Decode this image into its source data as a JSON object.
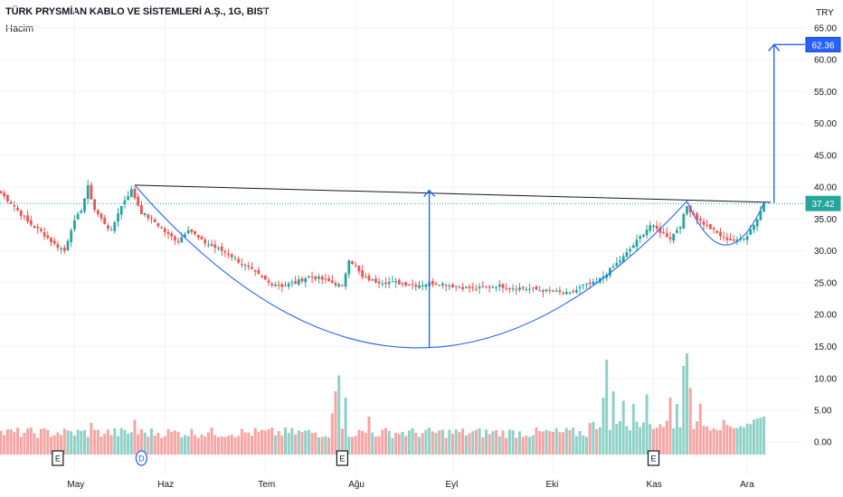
{
  "header": {
    "title": "TÜRK PRYSMİAN KABLO VE SİSTEMLERİ A.Ş., 1G, BIST",
    "volume_label": "Hacim",
    "currency": "TRY"
  },
  "colors": {
    "up": "#26a69a",
    "down": "#ef5350",
    "vol_up": "#8fd1c7",
    "vol_down": "#f5a5a4",
    "pattern": "#2962ff",
    "resistance": "#131722",
    "price_line": "#26a69a"
  },
  "chart_data": {
    "type": "candlestick",
    "symbol": "TÜRK PRYSMİAN KABLO VE SİSTEMLERİ A.Ş.",
    "interval": "1G",
    "exchange": "BIST",
    "currency": "TRY",
    "price_axis": {
      "ticks": [
        "65.00",
        "60.00",
        "55.00",
        "50.00",
        "45.00",
        "40.00",
        "35.00",
        "30.00",
        "25.00",
        "20.00",
        "15.00",
        "10.00",
        "5.00",
        "0.00"
      ]
    },
    "time_axis": {
      "labels": [
        "May",
        "Haz",
        "Tem",
        "Ağu",
        "Eyl",
        "Eki",
        "Kas",
        "Ara"
      ]
    },
    "last_price": {
      "value": 37.42,
      "label": "37.42"
    },
    "target_price": {
      "value": 62.36,
      "label": "62.36"
    },
    "price_keypoints": [
      {
        "i": 0,
        "p": 39.0
      },
      {
        "i": 4,
        "p": 37.0
      },
      {
        "i": 8,
        "p": 34.5
      },
      {
        "i": 12,
        "p": 33.0
      },
      {
        "i": 16,
        "p": 31.0
      },
      {
        "i": 19,
        "p": 30.0
      },
      {
        "i": 21,
        "p": 33.5
      },
      {
        "i": 24,
        "p": 36.5
      },
      {
        "i": 26,
        "p": 40.0
      },
      {
        "i": 28,
        "p": 36.5
      },
      {
        "i": 30,
        "p": 35.0
      },
      {
        "i": 33,
        "p": 33.0
      },
      {
        "i": 35,
        "p": 36.0
      },
      {
        "i": 37,
        "p": 38.0
      },
      {
        "i": 39,
        "p": 39.5
      },
      {
        "i": 42,
        "p": 36.0
      },
      {
        "i": 46,
        "p": 34.5
      },
      {
        "i": 50,
        "p": 32.5
      },
      {
        "i": 53,
        "p": 31.5
      },
      {
        "i": 56,
        "p": 33.5
      },
      {
        "i": 60,
        "p": 31.5
      },
      {
        "i": 64,
        "p": 30.5
      },
      {
        "i": 68,
        "p": 29.5
      },
      {
        "i": 72,
        "p": 28.0
      },
      {
        "i": 76,
        "p": 26.5
      },
      {
        "i": 80,
        "p": 25.0
      },
      {
        "i": 84,
        "p": 24.5
      },
      {
        "i": 88,
        "p": 25.0
      },
      {
        "i": 92,
        "p": 26.0
      },
      {
        "i": 96,
        "p": 25.5
      },
      {
        "i": 100,
        "p": 24.8
      },
      {
        "i": 102,
        "p": 24.3
      },
      {
        "i": 104,
        "p": 28.8
      },
      {
        "i": 106,
        "p": 27.5
      },
      {
        "i": 108,
        "p": 25.8
      },
      {
        "i": 112,
        "p": 25.2
      },
      {
        "i": 118,
        "p": 25.0
      },
      {
        "i": 124,
        "p": 24.6
      },
      {
        "i": 130,
        "p": 25.0
      },
      {
        "i": 136,
        "p": 24.4
      },
      {
        "i": 142,
        "p": 24.0
      },
      {
        "i": 148,
        "p": 24.5
      },
      {
        "i": 154,
        "p": 24.2
      },
      {
        "i": 160,
        "p": 23.9
      },
      {
        "i": 166,
        "p": 23.5
      },
      {
        "i": 170,
        "p": 23.2
      },
      {
        "i": 174,
        "p": 24.5
      },
      {
        "i": 178,
        "p": 25.0
      },
      {
        "i": 182,
        "p": 27.0
      },
      {
        "i": 186,
        "p": 29.0
      },
      {
        "i": 190,
        "p": 31.5
      },
      {
        "i": 194,
        "p": 34.0
      },
      {
        "i": 197,
        "p": 33.0
      },
      {
        "i": 200,
        "p": 32.0
      },
      {
        "i": 203,
        "p": 34.0
      },
      {
        "i": 205,
        "p": 37.0
      },
      {
        "i": 208,
        "p": 35.0
      },
      {
        "i": 212,
        "p": 33.5
      },
      {
        "i": 216,
        "p": 32.0
      },
      {
        "i": 220,
        "p": 31.5
      },
      {
        "i": 223,
        "p": 32.5
      },
      {
        "i": 226,
        "p": 35.0
      },
      {
        "i": 228,
        "p": 37.4
      }
    ],
    "volume_spikes": [
      {
        "i": 27,
        "v": 3.0
      },
      {
        "i": 40,
        "v": 3.5
      },
      {
        "i": 99,
        "v": 4.5
      },
      {
        "i": 100,
        "v": 8.0
      },
      {
        "i": 101,
        "v": 10.5
      },
      {
        "i": 103,
        "v": 7.0
      },
      {
        "i": 110,
        "v": 4.0
      },
      {
        "i": 180,
        "v": 7.0
      },
      {
        "i": 181,
        "v": 13.0
      },
      {
        "i": 183,
        "v": 8.0
      },
      {
        "i": 186,
        "v": 6.5
      },
      {
        "i": 189,
        "v": 6.0
      },
      {
        "i": 193,
        "v": 7.5
      },
      {
        "i": 200,
        "v": 7.0
      },
      {
        "i": 202,
        "v": 6.0
      },
      {
        "i": 204,
        "v": 12.0
      },
      {
        "i": 205,
        "v": 14.0
      },
      {
        "i": 206,
        "v": 8.5
      },
      {
        "i": 209,
        "v": 6.0
      },
      {
        "i": 225,
        "v": 3.5
      },
      {
        "i": 226,
        "v": 3.7
      },
      {
        "i": 227,
        "v": 3.8
      },
      {
        "i": 228,
        "v": 4.0
      }
    ],
    "event_markers": [
      {
        "i": 17,
        "label": "E",
        "kind": "earnings"
      },
      {
        "i": 42,
        "label": "D",
        "kind": "dividend"
      },
      {
        "i": 102,
        "label": "E",
        "kind": "earnings"
      },
      {
        "i": 195,
        "label": "E",
        "kind": "earnings"
      }
    ],
    "drawings": {
      "resistance_line": {
        "from": {
          "i": 40,
          "p": 40.3
        },
        "to": {
          "i": 230,
          "p": 37.6
        }
      },
      "cup_curve": {
        "start": {
          "i": 40,
          "p": 40.3
        },
        "bottom": {
          "i": 128,
          "p": 14.8
        },
        "end": {
          "i": 205,
          "p": 37.8
        }
      },
      "handle_curve": {
        "start": {
          "i": 205,
          "p": 37.8
        },
        "bottom": {
          "i": 218,
          "p": 31.0
        },
        "end": {
          "i": 228,
          "p": 37.5
        }
      },
      "cup_depth_arrow": {
        "i": 128,
        "from_p": 14.8,
        "to_p": 39.5
      },
      "target_arrow": {
        "i": 231,
        "from_p": 37.5,
        "to_p": 62.36,
        "head_to_label": true
      }
    }
  }
}
